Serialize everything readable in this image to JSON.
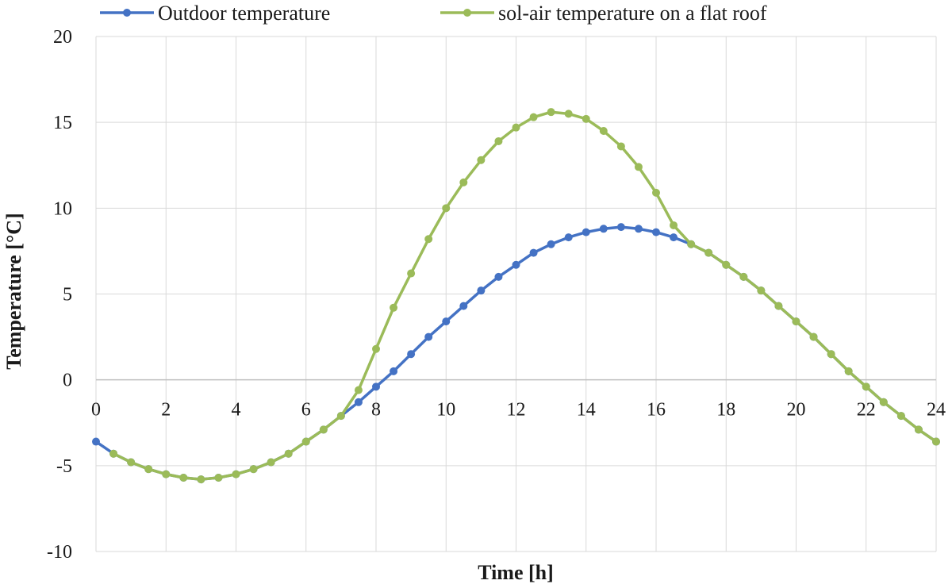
{
  "chart_data": {
    "type": "line",
    "title": "",
    "xlabel": "Time [h]",
    "ylabel": "Temperature  [°C]",
    "xlim": [
      0,
      24
    ],
    "ylim": [
      -10,
      20
    ],
    "xticks": [
      "0",
      "2",
      "4",
      "6",
      "8",
      "10",
      "12",
      "14",
      "16",
      "18",
      "20",
      "22",
      "24"
    ],
    "yticks": [
      "20",
      "15",
      "10",
      "5",
      "0",
      "-5",
      "-10"
    ],
    "grid": true,
    "legend_position": "top",
    "x": [
      0,
      0.5,
      1,
      1.5,
      2,
      2.5,
      3,
      3.5,
      4,
      4.5,
      5,
      5.5,
      6,
      6.5,
      7,
      7.5,
      8,
      8.5,
      9,
      9.5,
      10,
      10.5,
      11,
      11.5,
      12,
      12.5,
      13,
      13.5,
      14,
      14.5,
      15,
      15.5,
      16,
      16.5,
      17,
      17.5,
      18,
      18.5,
      19,
      19.5,
      20,
      20.5,
      21,
      21.5,
      22,
      22.5,
      23,
      23.5,
      24
    ],
    "series": [
      {
        "name": "Outdoor temperature",
        "color": "#4472c4",
        "values": [
          -3.6,
          -4.3,
          -4.8,
          -5.2,
          -5.5,
          -5.7,
          -5.8,
          -5.7,
          -5.5,
          -5.2,
          -4.8,
          -4.3,
          -3.6,
          -2.9,
          -2.1,
          -1.3,
          -0.4,
          0.5,
          1.5,
          2.5,
          3.4,
          4.3,
          5.2,
          6.0,
          6.7,
          7.4,
          7.9,
          8.3,
          8.6,
          8.8,
          8.9,
          8.8,
          8.6,
          8.3,
          7.9,
          7.4,
          6.7,
          6.0,
          5.2,
          4.3,
          3.4,
          2.5,
          1.5,
          0.5,
          -0.4,
          -1.3,
          -2.1,
          -2.9,
          -3.6
        ]
      },
      {
        "name": "sol-air temperature on a flat roof",
        "color": "#9bbb59",
        "values": [
          null,
          -4.3,
          -4.8,
          -5.2,
          -5.5,
          -5.7,
          -5.8,
          -5.7,
          -5.5,
          -5.2,
          -4.8,
          -4.3,
          -3.6,
          -2.9,
          -2.1,
          -0.6,
          1.8,
          4.2,
          6.2,
          8.2,
          10.0,
          11.5,
          12.8,
          13.9,
          14.7,
          15.3,
          15.6,
          15.5,
          15.2,
          14.5,
          13.6,
          12.4,
          10.9,
          9.0,
          7.9,
          7.4,
          6.7,
          6.0,
          5.2,
          4.3,
          3.4,
          2.5,
          1.5,
          0.5,
          -0.4,
          -1.3,
          -2.1,
          -2.9,
          -3.6
        ]
      }
    ]
  }
}
